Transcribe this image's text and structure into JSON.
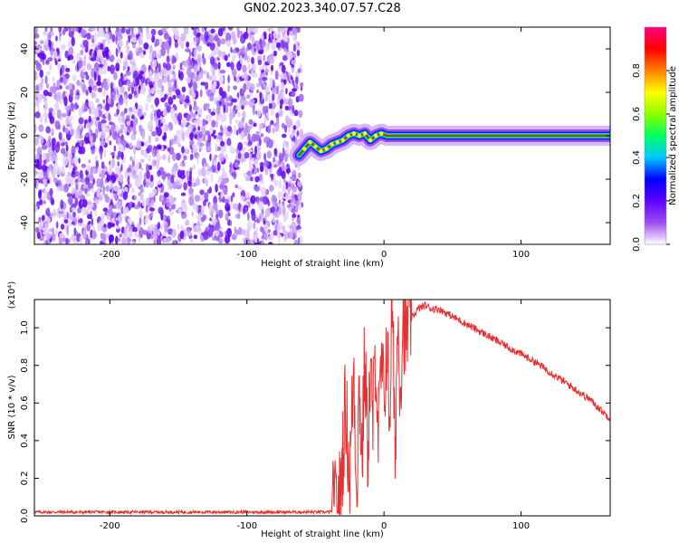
{
  "title": "GN02.2023.340.07.57.C28",
  "chart_data": [
    {
      "type": "heatmap",
      "title": "GN02.2023.340.07.57.C28",
      "xlabel": "Height of straight line (km)",
      "ylabel": "Frequency (Hz)",
      "xlim": [
        -255,
        165
      ],
      "ylim": [
        -50,
        50
      ],
      "x_ticks": [
        -200,
        -100,
        0,
        100
      ],
      "y_ticks": [
        -40,
        -20,
        0,
        20,
        40
      ],
      "noise_region_x": [
        -255,
        -60
      ],
      "signal_trace": {
        "x": [
          -62,
          -58,
          -54,
          -50,
          -46,
          -42,
          -38,
          -34,
          -30,
          -26,
          -22,
          -18,
          -14,
          -10,
          -6,
          -2,
          2,
          10,
          40,
          80,
          120,
          165
        ],
        "y": [
          -9,
          -6,
          -3,
          -5,
          -7,
          -6,
          -4,
          -3,
          -2,
          0,
          1,
          0,
          1,
          -2,
          0,
          1,
          0,
          0,
          0,
          0,
          0,
          0
        ]
      },
      "colorbar": {
        "label": "Normalized spectral amplitude",
        "range": [
          0.0,
          1.0
        ],
        "ticks": [
          "0.0",
          "0.2",
          "0.4",
          "0.6",
          "0.8"
        ],
        "colors": [
          "#ffffff",
          "#9f4cf0",
          "#5d00ff",
          "#0000ff",
          "#00c8ff",
          "#00ff60",
          "#8cff00",
          "#ffff00",
          "#ff8000",
          "#ff0000",
          "#ff0080"
        ]
      }
    },
    {
      "type": "line",
      "xlabel": "Height of straight line (km)",
      "ylabel": "SNR (10 * v/v)",
      "y_multiplier": "(x10⁴)",
      "xlim": [
        -255,
        165
      ],
      "ylim": [
        0,
        1.15
      ],
      "x_ticks": [
        -200,
        -100,
        0,
        100
      ],
      "y_ticks": [
        "0.0",
        "0.2",
        "0.4",
        "0.6",
        "0.8",
        "1.0"
      ],
      "series": [
        {
          "color": "#e83030",
          "x": [
            -255,
            -40,
            -35,
            -32,
            -28,
            -25,
            -22,
            -20,
            -18,
            -16,
            -14,
            -12,
            -10,
            -8,
            -6,
            -4,
            -2,
            0,
            2,
            4,
            6,
            8,
            10,
            12,
            14,
            16,
            18,
            20,
            25,
            30,
            35,
            40,
            50,
            60,
            70,
            80,
            90,
            100,
            110,
            120,
            130,
            140,
            150,
            160,
            165
          ],
          "y": [
            0.02,
            0.02,
            0.03,
            0.1,
            0.6,
            0.2,
            0.8,
            0.15,
            0.7,
            0.3,
            0.85,
            0.35,
            0.75,
            0.5,
            0.9,
            0.4,
            0.8,
            0.6,
            0.95,
            0.5,
            1.15,
            0.3,
            1.05,
            0.7,
            1.1,
            0.9,
            1.08,
            1.05,
            1.1,
            1.12,
            1.1,
            1.1,
            1.06,
            1.02,
            0.98,
            0.94,
            0.9,
            0.86,
            0.82,
            0.77,
            0.72,
            0.67,
            0.62,
            0.55,
            0.52
          ]
        }
      ]
    }
  ]
}
